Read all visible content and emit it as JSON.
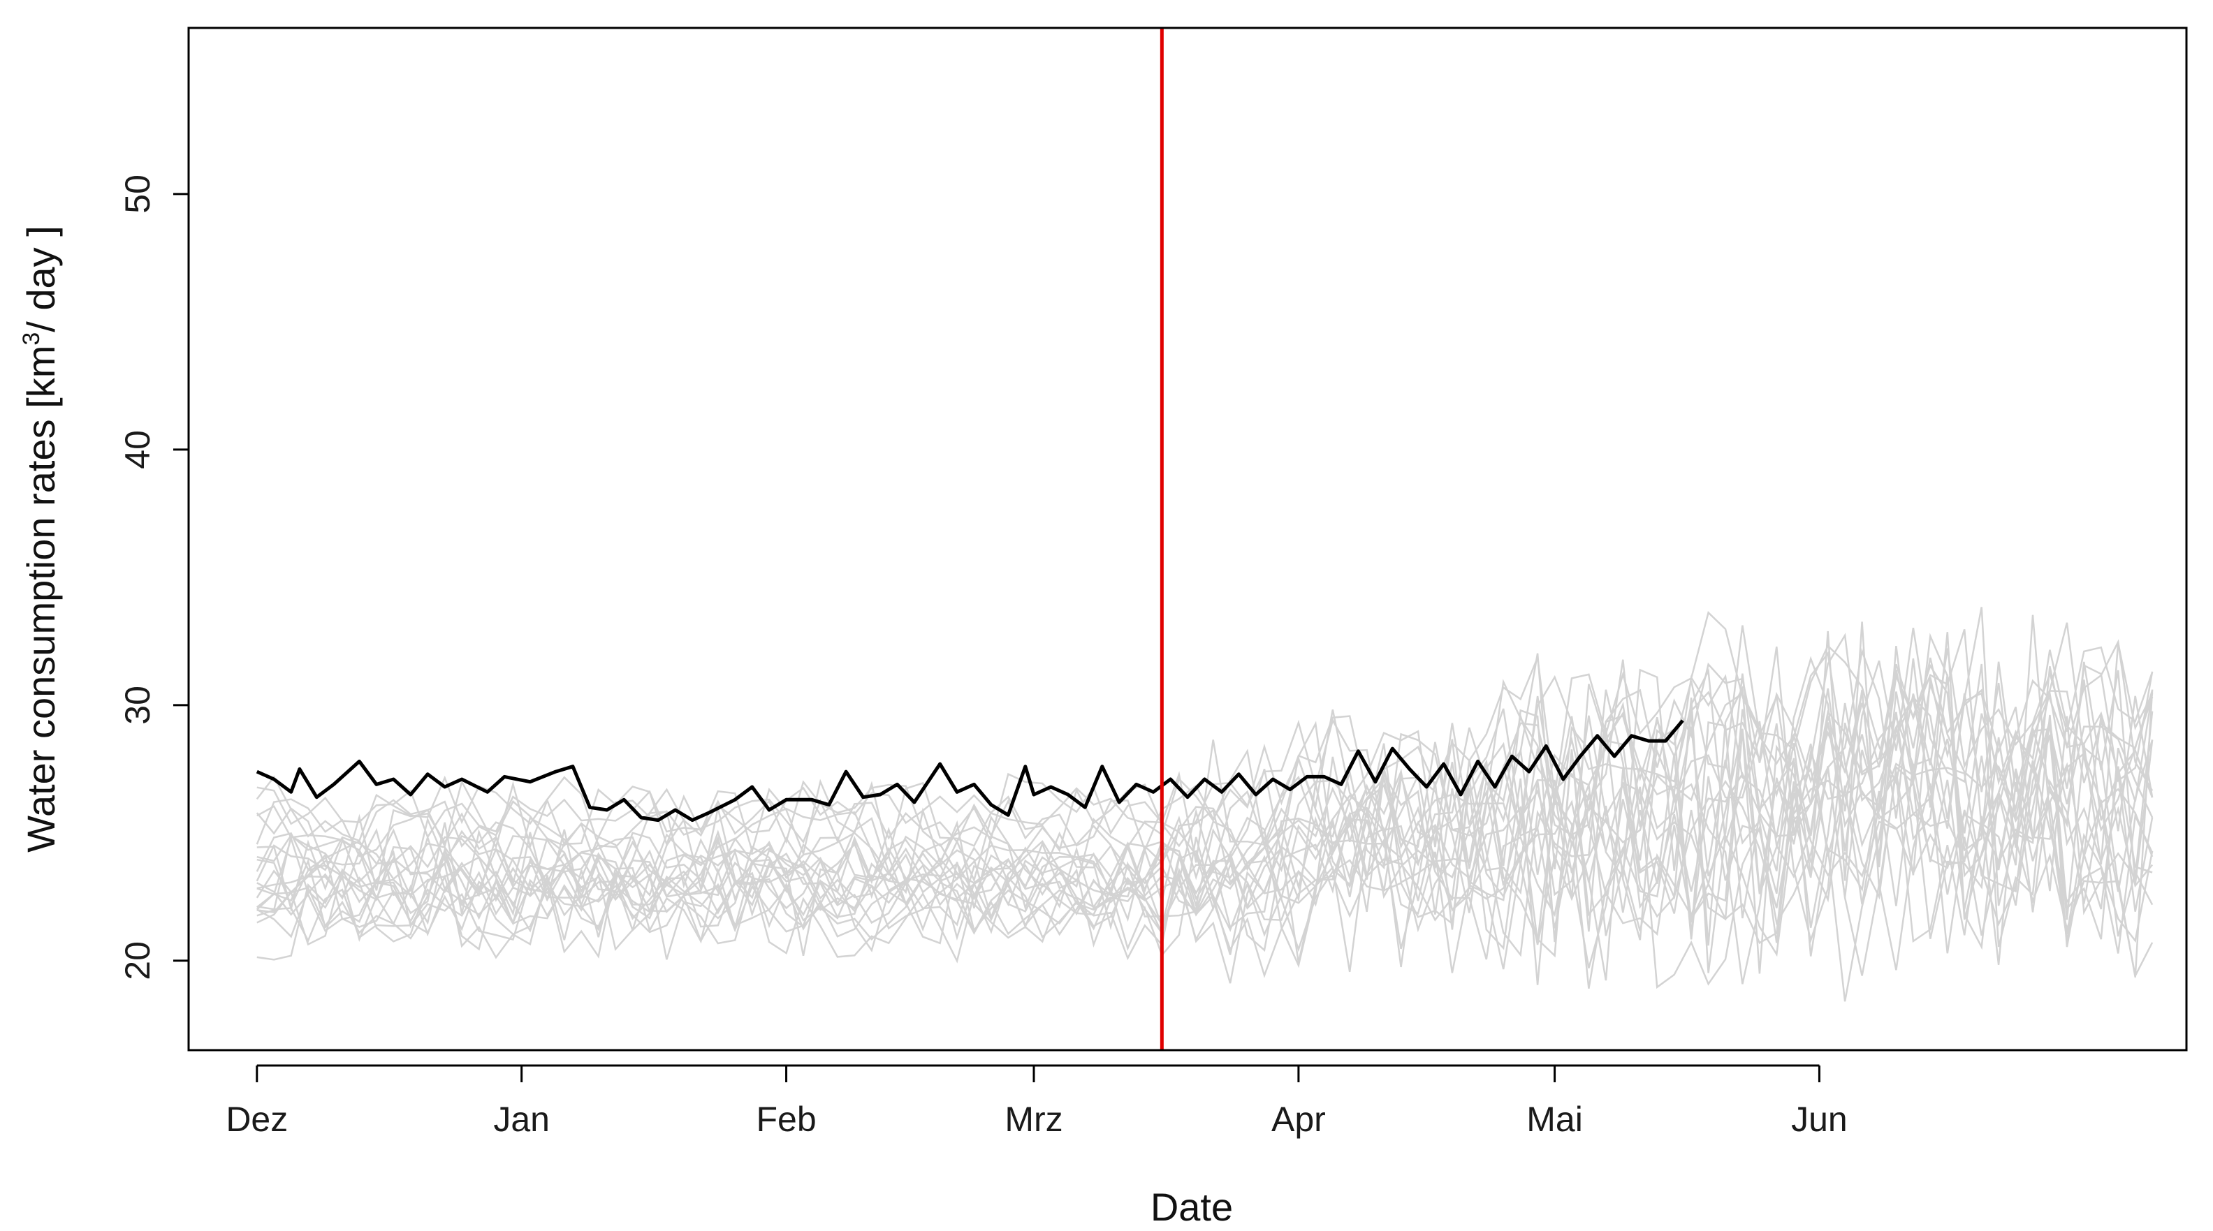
{
  "chart_data": {
    "type": "line",
    "title": "",
    "xlabel": "Date",
    "ylabel": {
      "prefix": "Water consumption rates [km",
      "superscript": "3",
      "suffix": "/ day ]"
    },
    "ylim": [
      16.5,
      56.5
    ],
    "xlim": [
      "2019-11-23",
      "2020-07-14"
    ],
    "grid": false,
    "legend": "none",
    "y_ticks": [
      20,
      30,
      40,
      50
    ],
    "x_ticks": [
      {
        "date": "2019-12-01",
        "label": "Dez"
      },
      {
        "date": "2020-01-01",
        "label": "Jan"
      },
      {
        "date": "2020-02-01",
        "label": "Feb"
      },
      {
        "date": "2020-03-01",
        "label": "Mrz"
      },
      {
        "date": "2020-04-01",
        "label": "Apr"
      },
      {
        "date": "2020-05-01",
        "label": "Mai"
      },
      {
        "date": "2020-06-01",
        "label": "Jun"
      }
    ],
    "vline": {
      "date": "2020-03-16",
      "color": "#e00000"
    },
    "colors": {
      "main": "#000000",
      "ensemble": "#d3d3d3",
      "vline": "#e00000"
    },
    "main_series": {
      "points": [
        [
          "2019-12-01",
          27.4
        ],
        [
          "2019-12-03",
          27.1
        ],
        [
          "2019-12-05",
          26.6
        ],
        [
          "2019-12-06",
          27.5
        ],
        [
          "2019-12-08",
          26.4
        ],
        [
          "2019-12-10",
          26.9
        ],
        [
          "2019-12-13",
          27.8
        ],
        [
          "2019-12-15",
          26.9
        ],
        [
          "2019-12-17",
          27.1
        ],
        [
          "2019-12-19",
          26.5
        ],
        [
          "2019-12-21",
          27.3
        ],
        [
          "2019-12-23",
          26.8
        ],
        [
          "2019-12-25",
          27.1
        ],
        [
          "2019-12-28",
          26.6
        ],
        [
          "2019-12-30",
          27.2
        ],
        [
          "2020-01-02",
          27.0
        ],
        [
          "2020-01-05",
          27.4
        ],
        [
          "2020-01-07",
          27.6
        ],
        [
          "2020-01-09",
          26.0
        ],
        [
          "2020-01-11",
          25.9
        ],
        [
          "2020-01-13",
          26.3
        ],
        [
          "2020-01-15",
          25.6
        ],
        [
          "2020-01-17",
          25.5
        ],
        [
          "2020-01-19",
          25.9
        ],
        [
          "2020-01-21",
          25.5
        ],
        [
          "2020-01-23",
          25.8
        ],
        [
          "2020-01-26",
          26.3
        ],
        [
          "2020-01-28",
          26.8
        ],
        [
          "2020-01-30",
          25.9
        ],
        [
          "2020-02-01",
          26.3
        ],
        [
          "2020-02-04",
          26.3
        ],
        [
          "2020-02-06",
          26.1
        ],
        [
          "2020-02-08",
          27.4
        ],
        [
          "2020-02-10",
          26.4
        ],
        [
          "2020-02-12",
          26.5
        ],
        [
          "2020-02-14",
          26.9
        ],
        [
          "2020-02-16",
          26.2
        ],
        [
          "2020-02-19",
          27.7
        ],
        [
          "2020-02-21",
          26.6
        ],
        [
          "2020-02-23",
          26.9
        ],
        [
          "2020-02-25",
          26.1
        ],
        [
          "2020-02-27",
          25.7
        ],
        [
          "2020-02-29",
          27.6
        ],
        [
          "2020-03-01",
          26.5
        ],
        [
          "2020-03-03",
          26.8
        ],
        [
          "2020-03-05",
          26.5
        ],
        [
          "2020-03-07",
          26.0
        ],
        [
          "2020-03-09",
          27.6
        ],
        [
          "2020-03-11",
          26.2
        ],
        [
          "2020-03-13",
          26.9
        ],
        [
          "2020-03-15",
          26.6
        ],
        [
          "2020-03-17",
          27.1
        ],
        [
          "2020-03-19",
          26.4
        ],
        [
          "2020-03-21",
          27.1
        ],
        [
          "2020-03-23",
          26.6
        ],
        [
          "2020-03-25",
          27.3
        ],
        [
          "2020-03-27",
          26.5
        ],
        [
          "2020-03-29",
          27.1
        ],
        [
          "2020-03-31",
          26.7
        ],
        [
          "2020-04-02",
          27.2
        ],
        [
          "2020-04-04",
          27.2
        ],
        [
          "2020-04-06",
          26.9
        ],
        [
          "2020-04-08",
          28.2
        ],
        [
          "2020-04-10",
          27.0
        ],
        [
          "2020-04-12",
          28.3
        ],
        [
          "2020-04-14",
          27.5
        ],
        [
          "2020-04-16",
          26.8
        ],
        [
          "2020-04-18",
          27.7
        ],
        [
          "2020-04-20",
          26.5
        ],
        [
          "2020-04-22",
          27.8
        ],
        [
          "2020-04-24",
          26.8
        ],
        [
          "2020-04-26",
          28.0
        ],
        [
          "2020-04-28",
          27.4
        ],
        [
          "2020-04-30",
          28.4
        ],
        [
          "2020-05-02",
          27.1
        ],
        [
          "2020-05-04",
          28.0
        ],
        [
          "2020-05-06",
          28.8
        ],
        [
          "2020-05-08",
          28.0
        ],
        [
          "2020-05-10",
          28.8
        ],
        [
          "2020-05-12",
          28.6
        ],
        [
          "2020-05-14",
          28.6
        ],
        [
          "2020-05-16",
          29.4
        ]
      ]
    },
    "ensemble_series": []
  }
}
